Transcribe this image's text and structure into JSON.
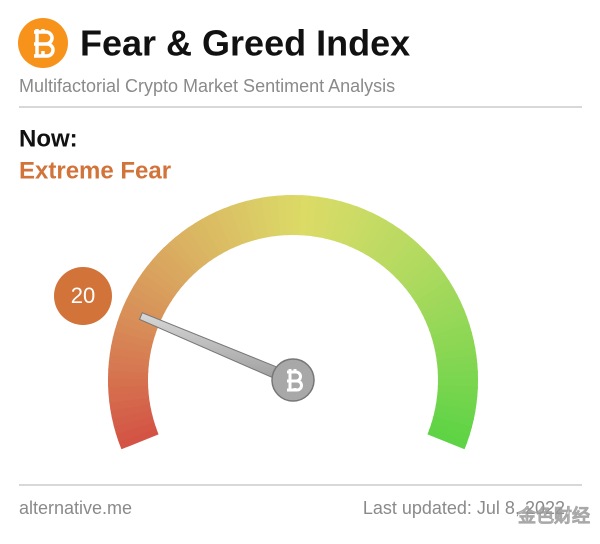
{
  "chart_data": {
    "type": "gauge",
    "title": "Fear & Greed Index",
    "subtitle": "Multifactorial Crypto Market Sentiment Analysis",
    "now_label": "Now:",
    "classification": "Extreme Fear",
    "value": 20,
    "ylim": [
      0,
      100
    ],
    "source": "alternative.me",
    "last_updated": "Last updated: Jul 8, 2022",
    "watermark": "金色财经"
  }
}
